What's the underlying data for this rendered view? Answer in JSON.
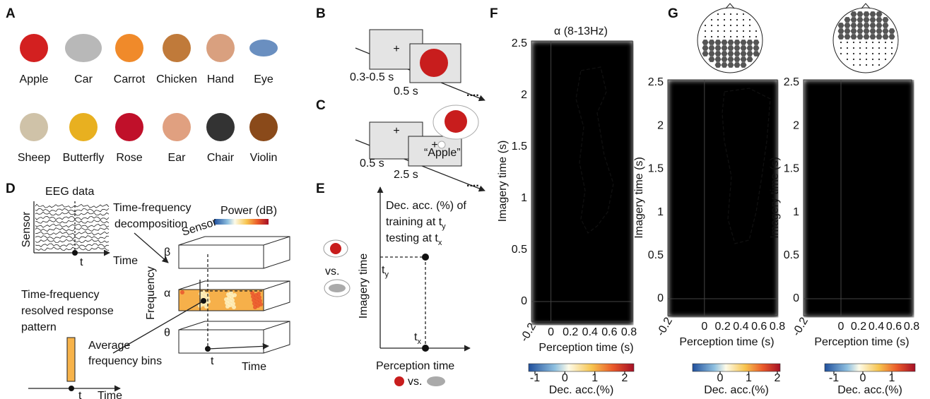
{
  "A": {
    "label": "A",
    "items": [
      "Apple",
      "Car",
      "Carrot",
      "Chicken",
      "Hand",
      "Eye",
      "Sheep",
      "Butterfly",
      "Rose",
      "Ear",
      "Chair",
      "Violin"
    ]
  },
  "B": {
    "label": "B",
    "fixation_time": "0.3-0.5 s",
    "stimulus_time": "0.5 s"
  },
  "C": {
    "label": "C",
    "fixation_time": "0.5 s",
    "imagery_time": "2.5 s",
    "cue": "“Apple”"
  },
  "D": {
    "label": "D",
    "eeg_data": "EEG data",
    "sensor_axis": "Sensor",
    "time_axis": "Time",
    "t_marker": "t",
    "decomposition": [
      "Time-frequency",
      "decomposition"
    ],
    "power": "Power (dB)",
    "cube_sensor": "Sensor",
    "bands": [
      "β",
      "α",
      "θ"
    ],
    "frequency": "Frequency",
    "cube_t": "t",
    "cube_time": "Time",
    "pattern": [
      "Time-frequency",
      "resolved response",
      "pattern"
    ],
    "average": [
      "Average",
      "frequency bins"
    ],
    "bottom_t": "t",
    "bottom_time": "Time"
  },
  "E": {
    "label": "E",
    "description": [
      "Dec. acc. (%) of",
      "training at t",
      "testing at t"
    ],
    "subs": [
      "y",
      "x"
    ],
    "y_axis": "Imagery time",
    "vs": "vs.",
    "ty": "t",
    "ty_sub": "y",
    "tx": "t",
    "tx_sub": "x",
    "x_axis": "Perception time",
    "x_vs": "vs."
  },
  "F": {
    "label": "F",
    "title": "α (8-13Hz)",
    "x_label": "Perception time (s)",
    "y_label": "Imagery time (s)",
    "xticks": [
      -0.2,
      0,
      0.2,
      0.4,
      0.6,
      0.8
    ],
    "yticks": [
      2.5,
      2,
      1.5,
      1,
      0.5,
      0
    ],
    "colorbar_ticks": [
      -1,
      0,
      1,
      2
    ],
    "colorbar_label": "Dec. acc.(%)"
  },
  "G": {
    "label": "G",
    "panels": [
      {
        "x_label": "Perception time (s)",
        "y_label": "Imagery time (s)",
        "xticks": [
          -0.2,
          0,
          0.2,
          0.4,
          0.6,
          0.8
        ],
        "yticks": [
          2.5,
          2,
          1.5,
          1,
          0.5,
          0
        ],
        "colorbar_ticks": [
          0,
          1,
          2
        ],
        "colorbar_label": "Dec. acc.(%)"
      },
      {
        "x_label": "Perception time (s)",
        "y_label": "Imagery time (s)",
        "xticks": [
          -0.2,
          0,
          0.2,
          0.4,
          0.6,
          0.8
        ],
        "yticks": [
          2.5,
          2,
          1.5,
          1,
          0.5,
          0
        ],
        "colorbar_ticks": [
          -1,
          0,
          1
        ],
        "colorbar_label": "Dec. acc.(%)"
      }
    ]
  }
}
